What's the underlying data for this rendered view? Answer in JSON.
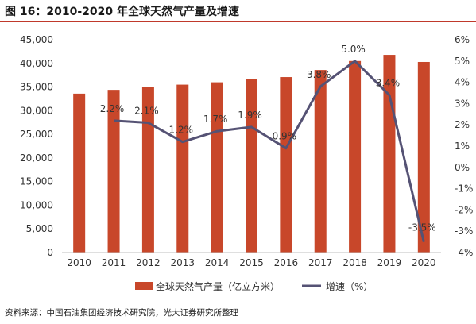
{
  "figure_title": "图 16：2010-2020 年全球天然气产量及增速",
  "source_note": "资料来源：中国石油集团经济技术研究院，光大证券研究所整理",
  "colors": {
    "bar": "#c8472a",
    "line": "#555274",
    "accent_rule": "#c0392b"
  },
  "chart_data": {
    "type": "bar",
    "categories": [
      "2010",
      "2011",
      "2012",
      "2013",
      "2014",
      "2015",
      "2016",
      "2017",
      "2018",
      "2019",
      "2020"
    ],
    "series": [
      {
        "name": "全球天然气产量（亿立方米）",
        "type": "bar",
        "axis": "left",
        "values": [
          33600,
          34400,
          35000,
          35500,
          36000,
          36700,
          37100,
          38600,
          40500,
          41800,
          40300
        ]
      },
      {
        "name": "增速（%）",
        "type": "line",
        "axis": "right",
        "values": [
          null,
          2.2,
          2.1,
          1.2,
          1.7,
          1.9,
          0.9,
          3.8,
          5.0,
          3.4,
          -3.5
        ],
        "labels": [
          "",
          "2.2%",
          "2.1%",
          "1.2%",
          "1.7%",
          "1.9%",
          "0.9%",
          "3.8%",
          "5.0%",
          "3.4%",
          "-3.5%"
        ]
      }
    ],
    "left_axis": {
      "ylim": [
        0,
        45000
      ],
      "ticks": [
        "0",
        "5,000",
        "10,000",
        "15,000",
        "20,000",
        "25,000",
        "30,000",
        "35,000",
        "40,000",
        "45,000"
      ]
    },
    "right_axis": {
      "ylim": [
        -4,
        6
      ],
      "ticks": [
        "-4%",
        "-3%",
        "-2%",
        "-1%",
        "0%",
        "1%",
        "2%",
        "3%",
        "4%",
        "5%",
        "6%"
      ]
    },
    "legend_position": "bottom",
    "grid": false
  }
}
